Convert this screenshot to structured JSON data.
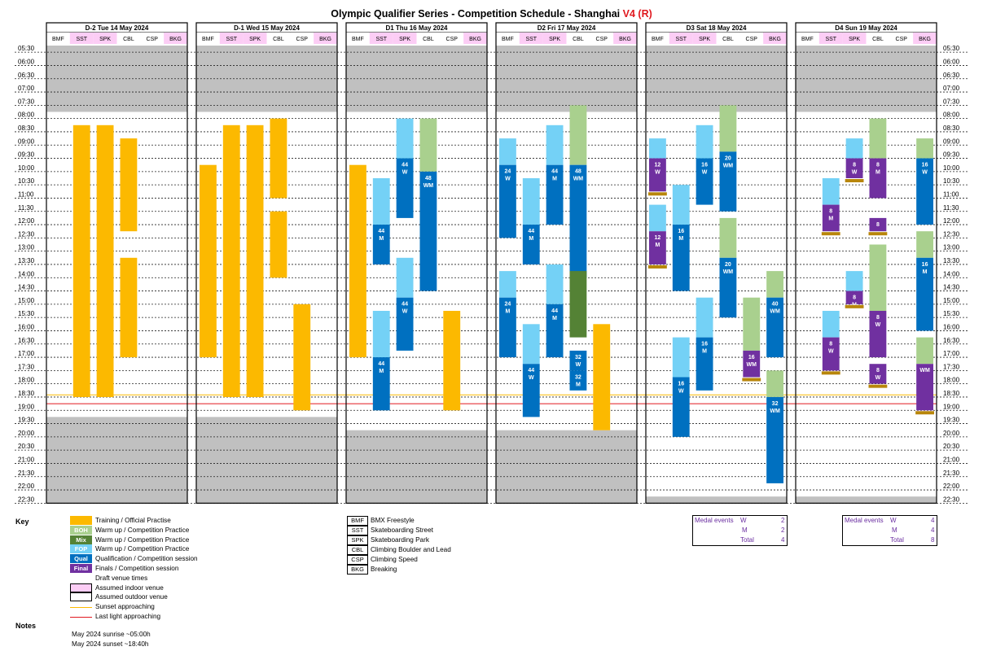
{
  "title": {
    "main": "Olympic Qualifier Series - Competition Schedule - Shanghai",
    "version": "V4 (R)"
  },
  "colors": {
    "training": "#fcb900",
    "boh": "#a9d08e",
    "mix": "#548235",
    "fop": "#74d1f6",
    "qual": "#0070c0",
    "final": "#7030a0",
    "indoor": "#fccdf5",
    "sunset": "#fcb900",
    "lastlight": "#e0191f",
    "grey": "#c0c0c0"
  },
  "chart_data": {
    "type": "table",
    "time_labels": [
      "05:30",
      "06:00",
      "06:30",
      "07:00",
      "07:30",
      "08:00",
      "08:30",
      "09:00",
      "09:30",
      "10:00",
      "10:30",
      "11:00",
      "11:30",
      "12:00",
      "12:30",
      "13:00",
      "13:30",
      "14:00",
      "14:30",
      "15:00",
      "15:30",
      "16:00",
      "16:30",
      "17:00",
      "17:30",
      "18:00",
      "18:30",
      "19:00",
      "19:30",
      "20:00",
      "20:30",
      "21:00",
      "21:30",
      "22:00",
      "22:30"
    ],
    "venues": [
      "BMF",
      "SST",
      "SPK",
      "CBL",
      "CSP",
      "BKG"
    ],
    "indoor_venues": [
      "SST",
      "SPK",
      "BKG"
    ],
    "sunset_time": "18:40",
    "last_light_time": "19:00",
    "days": [
      {
        "label": "D-2 Tue 14 May 2024",
        "grey_until": "08:00",
        "grey_from": "19:30",
        "blocks": [
          {
            "venue": "SST",
            "start": "08:30",
            "end": "18:45",
            "kind": "training"
          },
          {
            "venue": "SPK",
            "start": "08:30",
            "end": "18:45",
            "kind": "training"
          },
          {
            "venue": "CBL",
            "start": "09:00",
            "end": "12:30",
            "kind": "training"
          },
          {
            "venue": "CBL",
            "start": "13:30",
            "end": "17:15",
            "kind": "training"
          }
        ]
      },
      {
        "label": "D-1 Wed 15 May 2024",
        "grey_until": "08:00",
        "grey_from": "19:30",
        "blocks": [
          {
            "venue": "BMF",
            "start": "10:00",
            "end": "17:15",
            "kind": "training"
          },
          {
            "venue": "SST",
            "start": "08:30",
            "end": "18:45",
            "kind": "training"
          },
          {
            "venue": "SPK",
            "start": "08:30",
            "end": "18:45",
            "kind": "training"
          },
          {
            "venue": "CBL",
            "start": "08:15",
            "end": "11:15",
            "kind": "training"
          },
          {
            "venue": "CBL",
            "start": "11:45",
            "end": "14:15",
            "kind": "training"
          },
          {
            "venue": "CSP",
            "start": "15:15",
            "end": "19:15",
            "kind": "training"
          }
        ]
      },
      {
        "label": "D1 Thu 16 May 2024",
        "grey_until": "08:00",
        "grey_from": "20:00",
        "blocks": [
          {
            "venue": "BMF",
            "start": "10:00",
            "end": "17:15",
            "kind": "training"
          },
          {
            "venue": "SST",
            "start": "10:30",
            "end": "12:15",
            "kind": "fop"
          },
          {
            "venue": "SST",
            "start": "12:15",
            "end": "13:45",
            "kind": "qual",
            "text": "44 M"
          },
          {
            "venue": "SPK",
            "start": "08:15",
            "end": "09:45",
            "kind": "fop"
          },
          {
            "venue": "SPK",
            "start": "09:45",
            "end": "12:00",
            "kind": "qual",
            "text": "44 W"
          },
          {
            "venue": "CBL",
            "start": "08:15",
            "end": "10:15",
            "kind": "boh"
          },
          {
            "venue": "CBL",
            "start": "10:15",
            "end": "14:45",
            "kind": "qual",
            "text": "48 WM"
          },
          {
            "venue": "SPK",
            "start": "13:30",
            "end": "15:00",
            "kind": "fop"
          },
          {
            "venue": "SPK",
            "start": "15:00",
            "end": "17:00",
            "kind": "qual",
            "text": "44 W"
          },
          {
            "venue": "SST",
            "start": "15:30",
            "end": "17:15",
            "kind": "fop"
          },
          {
            "venue": "SST",
            "start": "17:15",
            "end": "19:15",
            "kind": "qual",
            "text": "44 M"
          },
          {
            "venue": "CSP",
            "start": "15:30",
            "end": "19:15",
            "kind": "training"
          }
        ]
      },
      {
        "label": "D2 Fri 17 May 2024",
        "grey_until": "08:00",
        "grey_from": "20:00",
        "blocks": [
          {
            "venue": "BMF",
            "start": "09:00",
            "end": "10:00",
            "kind": "fop"
          },
          {
            "venue": "BMF",
            "start": "10:00",
            "end": "12:45",
            "kind": "qual",
            "text": "24 W"
          },
          {
            "venue": "SST",
            "start": "10:30",
            "end": "12:15",
            "kind": "fop"
          },
          {
            "venue": "SST",
            "start": "12:15",
            "end": "13:45",
            "kind": "qual",
            "text": "44 M"
          },
          {
            "venue": "SPK",
            "start": "08:30",
            "end": "10:00",
            "kind": "fop"
          },
          {
            "venue": "SPK",
            "start": "10:00",
            "end": "12:15",
            "kind": "qual",
            "text": "44 M"
          },
          {
            "venue": "CBL",
            "start": "07:45",
            "end": "10:00",
            "kind": "boh"
          },
          {
            "venue": "CBL",
            "start": "10:00",
            "end": "14:15",
            "kind": "qual",
            "text": "48 WM"
          },
          {
            "venue": "BMF",
            "start": "14:00",
            "end": "15:00",
            "kind": "fop"
          },
          {
            "venue": "BMF",
            "start": "15:00",
            "end": "17:15",
            "kind": "qual",
            "text": "24 M"
          },
          {
            "venue": "SST",
            "start": "16:00",
            "end": "17:30",
            "kind": "fop"
          },
          {
            "venue": "SST",
            "start": "17:30",
            "end": "19:30",
            "kind": "qual",
            "text": "44 W"
          },
          {
            "venue": "SPK",
            "start": "13:45",
            "end": "15:15",
            "kind": "fop"
          },
          {
            "venue": "SPK",
            "start": "15:15",
            "end": "17:15",
            "kind": "qual",
            "text": "44 M"
          },
          {
            "venue": "CBL",
            "start": "14:00",
            "end": "16:30",
            "kind": "mix"
          },
          {
            "venue": "CBL",
            "start": "17:00",
            "end": "17:45",
            "kind": "qual",
            "text": "32 W"
          },
          {
            "venue": "CBL",
            "start": "17:45",
            "end": "18:30",
            "kind": "qual",
            "text": "32 M"
          },
          {
            "venue": "CSP",
            "start": "16:00",
            "end": "20:00",
            "kind": "training"
          }
        ]
      },
      {
        "label": "D3 Sat 18 May 2024",
        "grey_until": "08:00",
        "grey_from": "22:30",
        "blocks": [
          {
            "venue": "BMF",
            "start": "09:00",
            "end": "09:45",
            "kind": "fop"
          },
          {
            "venue": "BMF",
            "start": "09:45",
            "end": "11:00",
            "kind": "final",
            "text": "12 W"
          },
          {
            "venue": "BMF",
            "start": "11:00",
            "end": "11:15",
            "kind": "medal"
          },
          {
            "venue": "BMF",
            "start": "11:30",
            "end": "12:30",
            "kind": "fop"
          },
          {
            "venue": "BMF",
            "start": "12:30",
            "end": "13:45",
            "kind": "final",
            "text": "12 M"
          },
          {
            "venue": "BMF",
            "start": "13:45",
            "end": "14:00",
            "kind": "medal"
          },
          {
            "venue": "SST",
            "start": "10:45",
            "end": "12:15",
            "kind": "fop"
          },
          {
            "venue": "SST",
            "start": "12:15",
            "end": "14:45",
            "kind": "qual",
            "text": "16 M"
          },
          {
            "venue": "SPK",
            "start": "08:30",
            "end": "09:45",
            "kind": "fop"
          },
          {
            "venue": "SPK",
            "start": "09:45",
            "end": "11:30",
            "kind": "qual",
            "text": "16 W"
          },
          {
            "venue": "CBL",
            "start": "07:45",
            "end": "09:30",
            "kind": "boh"
          },
          {
            "venue": "CBL",
            "start": "09:30",
            "end": "11:45",
            "kind": "qual",
            "text": "20 WM"
          },
          {
            "venue": "CBL",
            "start": "12:00",
            "end": "13:30",
            "kind": "boh"
          },
          {
            "venue": "CBL",
            "start": "13:30",
            "end": "15:45",
            "kind": "qual",
            "text": "20 WM"
          },
          {
            "venue": "SST",
            "start": "16:30",
            "end": "18:00",
            "kind": "fop"
          },
          {
            "venue": "SST",
            "start": "18:00",
            "end": "20:15",
            "kind": "qual",
            "text": "16 W"
          },
          {
            "venue": "SPK",
            "start": "15:00",
            "end": "16:30",
            "kind": "fop"
          },
          {
            "venue": "SPK",
            "start": "16:30",
            "end": "18:30",
            "kind": "qual",
            "text": "16 M"
          },
          {
            "venue": "CSP",
            "start": "15:00",
            "end": "17:00",
            "kind": "boh"
          },
          {
            "venue": "CSP",
            "start": "17:00",
            "end": "18:00",
            "kind": "final",
            "text": "16 WM"
          },
          {
            "venue": "CSP",
            "start": "18:00",
            "end": "18:15",
            "kind": "medal"
          },
          {
            "venue": "BKG",
            "start": "14:00",
            "end": "15:00",
            "kind": "boh"
          },
          {
            "venue": "BKG",
            "start": "15:00",
            "end": "17:15",
            "kind": "qual",
            "text": "40 WM"
          },
          {
            "venue": "BKG",
            "start": "17:45",
            "end": "18:45",
            "kind": "boh"
          },
          {
            "venue": "BKG",
            "start": "18:45",
            "end": "22:00",
            "kind": "qual",
            "text": "32 WM"
          }
        ]
      },
      {
        "label": "D4 Sun 19 May 2024",
        "grey_until": "08:00",
        "grey_from": "22:30",
        "blocks": [
          {
            "venue": "SST",
            "start": "10:30",
            "end": "11:30",
            "kind": "fop"
          },
          {
            "venue": "SST",
            "start": "11:30",
            "end": "12:30",
            "kind": "final",
            "text": "8 M"
          },
          {
            "venue": "SST",
            "start": "12:30",
            "end": "12:45",
            "kind": "medal"
          },
          {
            "venue": "SPK",
            "start": "09:00",
            "end": "09:45",
            "kind": "fop"
          },
          {
            "venue": "SPK",
            "start": "09:45",
            "end": "10:30",
            "kind": "final",
            "text": "8 W"
          },
          {
            "venue": "SPK",
            "start": "10:30",
            "end": "10:45",
            "kind": "medal"
          },
          {
            "venue": "CBL",
            "start": "08:15",
            "end": "09:45",
            "kind": "boh"
          },
          {
            "venue": "CBL",
            "start": "09:45",
            "end": "11:15",
            "kind": "final",
            "text": "8 M"
          },
          {
            "venue": "CBL",
            "start": "12:00",
            "end": "12:30",
            "kind": "final",
            "text": "8"
          },
          {
            "venue": "CBL",
            "start": "12:30",
            "end": "12:45",
            "kind": "medal"
          },
          {
            "venue": "BKG",
            "start": "09:00",
            "end": "09:45",
            "kind": "boh"
          },
          {
            "venue": "BKG",
            "start": "09:45",
            "end": "12:15",
            "kind": "qual",
            "text": "16 W"
          },
          {
            "venue": "SPK",
            "start": "14:00",
            "end": "14:45",
            "kind": "fop"
          },
          {
            "venue": "SPK",
            "start": "14:45",
            "end": "15:15",
            "kind": "final",
            "text": "8 M"
          },
          {
            "venue": "SPK",
            "start": "15:15",
            "end": "15:30",
            "kind": "medal"
          },
          {
            "venue": "SST",
            "start": "15:30",
            "end": "16:30",
            "kind": "fop"
          },
          {
            "venue": "SST",
            "start": "16:30",
            "end": "17:45",
            "kind": "final",
            "text": "8 W"
          },
          {
            "venue": "SST",
            "start": "17:45",
            "end": "18:00",
            "kind": "medal"
          },
          {
            "venue": "CBL",
            "start": "13:00",
            "end": "15:30",
            "kind": "boh"
          },
          {
            "venue": "CBL",
            "start": "15:30",
            "end": "17:15",
            "kind": "final",
            "text": "8 W"
          },
          {
            "venue": "CBL",
            "start": "17:30",
            "end": "18:15",
            "kind": "final",
            "text": "8 W"
          },
          {
            "venue": "CBL",
            "start": "18:15",
            "end": "18:30",
            "kind": "medal"
          },
          {
            "venue": "BKG",
            "start": "12:30",
            "end": "13:30",
            "kind": "boh"
          },
          {
            "venue": "BKG",
            "start": "13:30",
            "end": "16:15",
            "kind": "qual",
            "text": "16 M"
          },
          {
            "venue": "BKG",
            "start": "16:30",
            "end": "17:30",
            "kind": "boh"
          },
          {
            "venue": "BKG",
            "start": "17:30",
            "end": "19:15",
            "kind": "final",
            "text": "WM"
          },
          {
            "venue": "BKG",
            "start": "19:15",
            "end": "19:30",
            "kind": "medal"
          }
        ]
      }
    ]
  },
  "key": {
    "heading": "Key",
    "items": [
      {
        "swatch": "",
        "kind": "training",
        "label": "Training / Official Practise"
      },
      {
        "swatch": "BOH",
        "kind": "boh",
        "label": "Warm up / Competition Practice"
      },
      {
        "swatch": "Mix",
        "kind": "mix",
        "label": "Warm up / Competition Practice"
      },
      {
        "swatch": "FOP",
        "kind": "fop",
        "label": "Warm up / Competition Practice"
      },
      {
        "swatch": "Qual",
        "kind": "qual",
        "label": "Qualification / Competition session"
      },
      {
        "swatch": "Final",
        "kind": "final",
        "label": "Finals / Competition session"
      },
      {
        "swatch": "",
        "kind": "draft",
        "label": "Draft venue times"
      },
      {
        "swatch": "",
        "kind": "indoor",
        "label": "Assumed indoor venue"
      },
      {
        "swatch": "",
        "kind": "outdoor",
        "label": "Assumed outdoor venue"
      },
      {
        "swatch": "",
        "kind": "sunset",
        "label": "Sunset approaching"
      },
      {
        "swatch": "",
        "kind": "lastlight",
        "label": "Last light approaching"
      }
    ],
    "abbreviations": [
      {
        "code": "BMF",
        "name": "BMX Freestyle"
      },
      {
        "code": "SST",
        "name": "Skateboarding Street"
      },
      {
        "code": "SPK",
        "name": "Skateboarding Park"
      },
      {
        "code": "CBL",
        "name": "Climbing Boulder and Lead"
      },
      {
        "code": "CSP",
        "name": "Climbing Speed"
      },
      {
        "code": "BKG",
        "name": "Breaking"
      }
    ]
  },
  "medals": [
    {
      "heading": "Medal events",
      "w_label": "W",
      "w": "2",
      "m_label": "M",
      "m": "2",
      "total_label": "Total",
      "total": "4"
    },
    {
      "heading": "Medal events",
      "w_label": "W",
      "w": "4",
      "m_label": "M",
      "m": "4",
      "total_label": "Total",
      "total": "8"
    }
  ],
  "notes": {
    "heading": "Notes",
    "lines": [
      "May 2024 sunrise ~05:00h",
      "May 2024 sunset ~18:40h"
    ]
  }
}
